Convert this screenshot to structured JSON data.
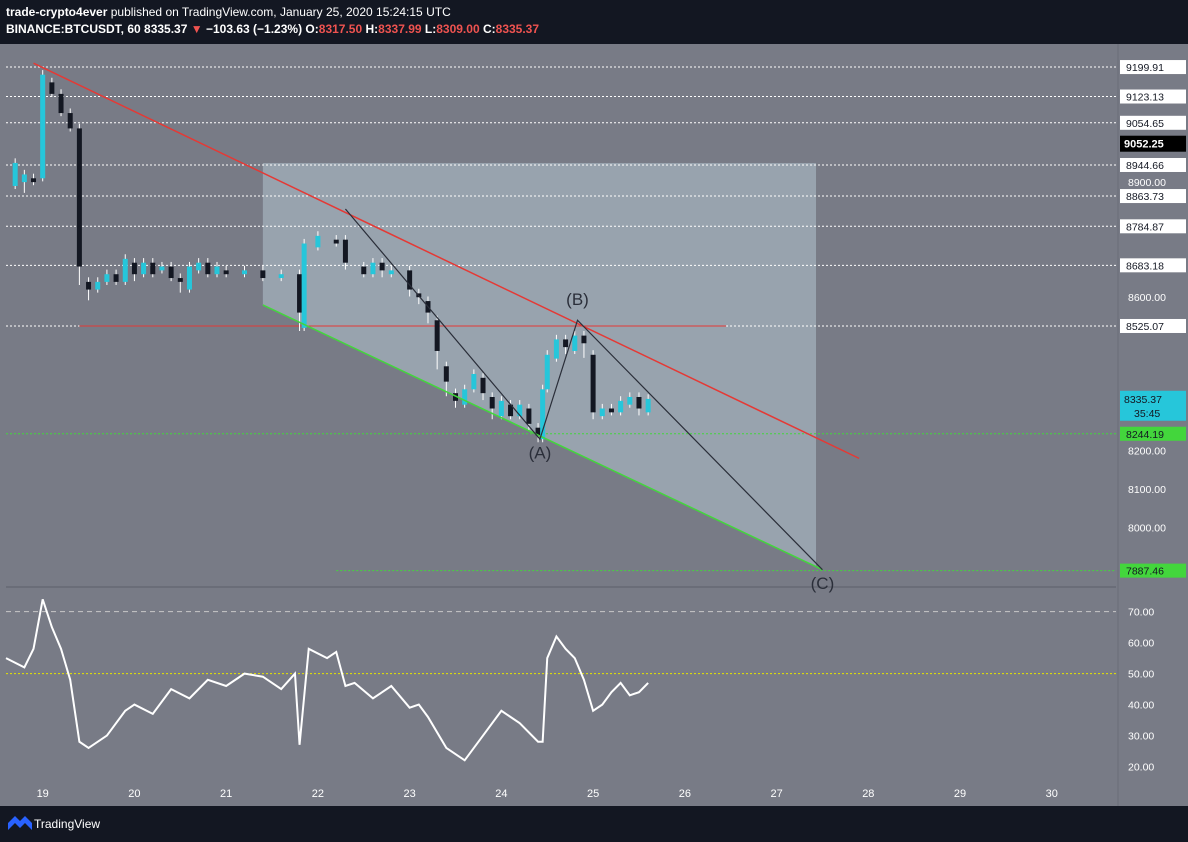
{
  "header": {
    "author": "trade-crypto4ever",
    "published": "published on TradingView.com, January 25, 2020 15:24:15 UTC",
    "symbol": "BINANCE:BTCUSDT, 60",
    "last": "8335.37",
    "change": "−103.63 (−1.23%)",
    "o_label": "O:",
    "o_value": "8317.50",
    "h_label": "H:",
    "h_value": "8337.99",
    "l_label": "L:",
    "l_value": "8309.00",
    "c_label": "C:",
    "c_value": "8335.37"
  },
  "footer": {
    "brand": "TradingView"
  },
  "colors": {
    "background": "#787b86",
    "up": "#26c6da",
    "down": "#131722",
    "wick": "#ffffff",
    "trend_red": "#e53935",
    "trend_green": "#43d63c",
    "rsi": "#ffffff",
    "zone_fill": "#b2c4d0"
  },
  "chart_data": [
    {
      "type": "candlestick",
      "symbol": "BINANCE:BTCUSDT",
      "interval": "60",
      "x_ticks": [
        "19",
        "20",
        "21",
        "22",
        "23",
        "24",
        "25",
        "26",
        "27",
        "28",
        "29",
        "30"
      ],
      "y_ticks": [
        "8000.00",
        "8100.00",
        "8200.00",
        "8600.00",
        "8900.00"
      ],
      "ylim": [
        7850,
        9260
      ],
      "price_lines": [
        {
          "value": 9199.91,
          "label": "9199.91",
          "style": "dotted"
        },
        {
          "value": 9123.13,
          "label": "9123.13",
          "style": "dotted"
        },
        {
          "value": 9054.65,
          "label": "9054.65",
          "style": "dotted"
        },
        {
          "value": 8944.66,
          "label": "8944.66",
          "style": "dotted"
        },
        {
          "value": 8863.73,
          "label": "8863.73",
          "style": "dotted"
        },
        {
          "value": 8784.87,
          "label": "8784.87",
          "style": "dotted"
        },
        {
          "value": 8683.18,
          "label": "8683.18",
          "style": "dotted"
        },
        {
          "value": 8525.07,
          "label": "8525.07",
          "style": "dotted"
        },
        {
          "value": 8244.19,
          "label": "8244.19",
          "style": "green"
        },
        {
          "value": 7887.46,
          "label": "7887.46",
          "style": "green"
        }
      ],
      "current_price": {
        "value": 8335.37,
        "label": "8335.37",
        "countdown": "35:45"
      },
      "black_badge": {
        "value": 9052.25,
        "label": "9052.25"
      },
      "wave_labels": [
        {
          "text": "(A)",
          "x": 24.42,
          "y": 8180
        },
        {
          "text": "(B)",
          "x": 24.83,
          "y": 8580
        },
        {
          "text": "(C)",
          "x": 27.5,
          "y": 7840
        }
      ],
      "wave_path": [
        {
          "x": 22.3,
          "y": 8830
        },
        {
          "x": 24.42,
          "y": 8230
        },
        {
          "x": 24.83,
          "y": 8540
        },
        {
          "x": 27.5,
          "y": 7890
        }
      ],
      "trendline_red": [
        {
          "x": 18.9,
          "y": 9210
        },
        {
          "x": 27.9,
          "y": 8180
        }
      ],
      "trendline_green": [
        {
          "x": 21.4,
          "y": 8580
        },
        {
          "x": 27.5,
          "y": 7890
        }
      ],
      "support_red": {
        "value": 8525,
        "x_from": 19.4,
        "x_to": 26.45
      },
      "zone": {
        "x_from": 21.4,
        "x_to": 27.43
      },
      "candles_approx": [
        [
          18.7,
          8890,
          8950,
          8900
        ],
        [
          18.8,
          8900,
          8920,
          8880
        ],
        [
          18.9,
          8910,
          8900,
          9010
        ],
        [
          19.0,
          8910,
          9180,
          9150
        ],
        [
          19.1,
          9160,
          9130,
          9140
        ],
        [
          19.2,
          9130,
          9080,
          9090
        ],
        [
          19.3,
          9080,
          9040,
          9050
        ],
        [
          19.4,
          9040,
          8680,
          8640
        ],
        [
          19.5,
          8640,
          8620,
          8600
        ],
        [
          19.6,
          8620,
          8640,
          8630
        ],
        [
          19.7,
          8640,
          8660,
          8660
        ],
        [
          19.8,
          8660,
          8640,
          8650
        ],
        [
          19.9,
          8640,
          8700,
          8690
        ],
        [
          20.0,
          8690,
          8660,
          8650
        ],
        [
          20.1,
          8660,
          8690,
          8690
        ],
        [
          20.2,
          8690,
          8660,
          8670
        ],
        [
          20.3,
          8670,
          8680,
          8680
        ],
        [
          20.4,
          8680,
          8650,
          8650
        ],
        [
          20.5,
          8650,
          8640,
          8620
        ],
        [
          20.6,
          8620,
          8680,
          8670
        ],
        [
          20.7,
          8670,
          8690,
          8690
        ],
        [
          20.8,
          8690,
          8660,
          8660
        ],
        [
          20.9,
          8660,
          8680,
          8670
        ],
        [
          21.0,
          8670,
          8660,
          8660
        ],
        [
          21.2,
          8660,
          8670,
          8670
        ],
        [
          21.4,
          8670,
          8650,
          8650
        ],
        [
          21.6,
          8650,
          8660,
          8660
        ],
        [
          21.8,
          8660,
          8560,
          8520
        ],
        [
          21.85,
          8520,
          8740,
          8730
        ],
        [
          22.0,
          8730,
          8760,
          8750
        ],
        [
          22.2,
          8750,
          8740,
          8750
        ],
        [
          22.3,
          8750,
          8690,
          8680
        ],
        [
          22.5,
          8680,
          8660,
          8660
        ],
        [
          22.6,
          8660,
          8690,
          8690
        ],
        [
          22.7,
          8690,
          8670,
          8660
        ],
        [
          22.8,
          8660,
          8670,
          8670
        ],
        [
          23.0,
          8670,
          8620,
          8610
        ],
        [
          23.1,
          8610,
          8600,
          8590
        ],
        [
          23.2,
          8590,
          8560,
          8540
        ],
        [
          23.3,
          8540,
          8460,
          8420
        ],
        [
          23.4,
          8420,
          8380,
          8350
        ],
        [
          23.5,
          8350,
          8330,
          8320
        ],
        [
          23.6,
          8320,
          8360,
          8360
        ],
        [
          23.7,
          8360,
          8400,
          8390
        ],
        [
          23.8,
          8390,
          8350,
          8340
        ],
        [
          23.9,
          8340,
          8310,
          8290
        ],
        [
          24.0,
          8290,
          8330,
          8320
        ],
        [
          24.1,
          8320,
          8290,
          8290
        ],
        [
          24.2,
          8290,
          8320,
          8310
        ],
        [
          24.3,
          8310,
          8270,
          8260
        ],
        [
          24.4,
          8260,
          8240,
          8230
        ],
        [
          24.45,
          8230,
          8360,
          8360
        ],
        [
          24.5,
          8360,
          8450,
          8440
        ],
        [
          24.6,
          8440,
          8490,
          8490
        ],
        [
          24.7,
          8490,
          8470,
          8460
        ],
        [
          24.8,
          8460,
          8500,
          8500
        ],
        [
          24.9,
          8500,
          8480,
          8450
        ],
        [
          25.0,
          8450,
          8300,
          8290
        ],
        [
          25.1,
          8290,
          8310,
          8310
        ],
        [
          25.2,
          8310,
          8300,
          8300
        ],
        [
          25.3,
          8300,
          8330,
          8320
        ],
        [
          25.4,
          8320,
          8340,
          8340
        ],
        [
          25.5,
          8340,
          8310,
          8300
        ],
        [
          25.6,
          8300,
          8335,
          8335
        ]
      ]
    },
    {
      "type": "line",
      "name": "RSI",
      "y_ticks": [
        "20.00",
        "30.00",
        "40.00",
        "50.00",
        "60.00",
        "70.00"
      ],
      "ylim": [
        15,
        77
      ],
      "levels": [
        70,
        50
      ],
      "x": [
        18.6,
        18.8,
        18.9,
        19.0,
        19.1,
        19.2,
        19.3,
        19.4,
        19.5,
        19.7,
        19.9,
        20.0,
        20.2,
        20.4,
        20.6,
        20.8,
        21.0,
        21.2,
        21.4,
        21.6,
        21.75,
        21.8,
        21.9,
        22.1,
        22.2,
        22.3,
        22.4,
        22.6,
        22.8,
        23.0,
        23.1,
        23.2,
        23.4,
        23.6,
        23.8,
        24.0,
        24.2,
        24.4,
        24.45,
        24.5,
        24.6,
        24.7,
        24.8,
        24.9,
        25.0,
        25.1,
        25.2,
        25.3,
        25.4,
        25.5,
        25.6
      ],
      "values": [
        55,
        52,
        58,
        74,
        65,
        58,
        48,
        28,
        26,
        30,
        38,
        40,
        37,
        45,
        42,
        48,
        46,
        50,
        49,
        45,
        50,
        27,
        58,
        55,
        57,
        46,
        47,
        42,
        46,
        39,
        40,
        36,
        26,
        22,
        30,
        38,
        34,
        28,
        28,
        55,
        62,
        58,
        55,
        48,
        38,
        40,
        44,
        47,
        43,
        44,
        47
      ]
    }
  ]
}
